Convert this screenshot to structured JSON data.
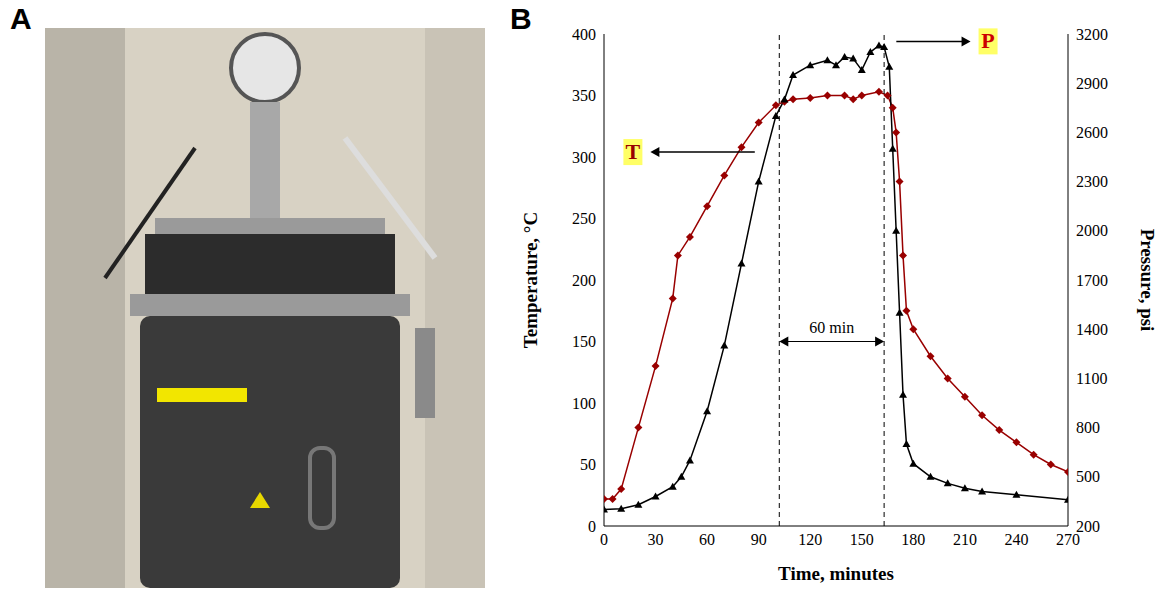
{
  "panel_labels": [
    "A",
    "B"
  ],
  "chart_data": {
    "type": "line",
    "x_label": "Time, minutes",
    "y_label": "Temperature, °C",
    "y2_label": "Pressure, psi",
    "xlim": [
      0,
      270
    ],
    "xticks": [
      0,
      30,
      60,
      90,
      120,
      150,
      180,
      210,
      240,
      270
    ],
    "ylim": [
      0,
      400
    ],
    "yticks": [
      0,
      50,
      100,
      150,
      200,
      250,
      300,
      350,
      400
    ],
    "y2lim": [
      200,
      3200
    ],
    "y2ticks": [
      200,
      500,
      800,
      1100,
      1400,
      1700,
      2000,
      2300,
      2600,
      2900,
      3200
    ],
    "grid": false,
    "series": [
      {
        "name": "T",
        "color": "#990000",
        "marker": "diamond",
        "x": [
          0,
          5,
          10,
          20,
          30,
          40,
          43,
          50,
          60,
          70,
          80,
          90,
          100,
          105,
          110,
          120,
          130,
          140,
          145,
          150,
          160,
          165,
          168,
          170,
          172,
          174,
          176,
          180,
          190,
          200,
          210,
          220,
          230,
          240,
          250,
          260,
          270
        ],
        "values": [
          22,
          22,
          30,
          80,
          130,
          185,
          220,
          235,
          260,
          285,
          308,
          328,
          342,
          345,
          347,
          348,
          350,
          350,
          347,
          350,
          353,
          350,
          340,
          320,
          280,
          220,
          175,
          160,
          138,
          120,
          105,
          90,
          78,
          68,
          58,
          50,
          44
        ]
      },
      {
        "name": "P",
        "color": "#000000",
        "marker": "triangle",
        "axis": "y2",
        "x": [
          0,
          10,
          20,
          30,
          40,
          45,
          50,
          60,
          70,
          80,
          90,
          100,
          105,
          110,
          120,
          130,
          135,
          140,
          145,
          150,
          155,
          160,
          163,
          166,
          168,
          170,
          172,
          174,
          176,
          180,
          190,
          200,
          210,
          220,
          240,
          270
        ],
        "values": [
          300,
          305,
          330,
          380,
          440,
          500,
          600,
          900,
          1300,
          1800,
          2300,
          2700,
          2800,
          2950,
          3010,
          3040,
          3010,
          3060,
          3050,
          2980,
          3090,
          3130,
          3120,
          3000,
          2500,
          2000,
          1500,
          1000,
          700,
          580,
          500,
          460,
          430,
          410,
          390,
          360
        ]
      }
    ],
    "annotations": [
      {
        "text": "60 min",
        "x": [
          102,
          163
        ]
      }
    ]
  }
}
